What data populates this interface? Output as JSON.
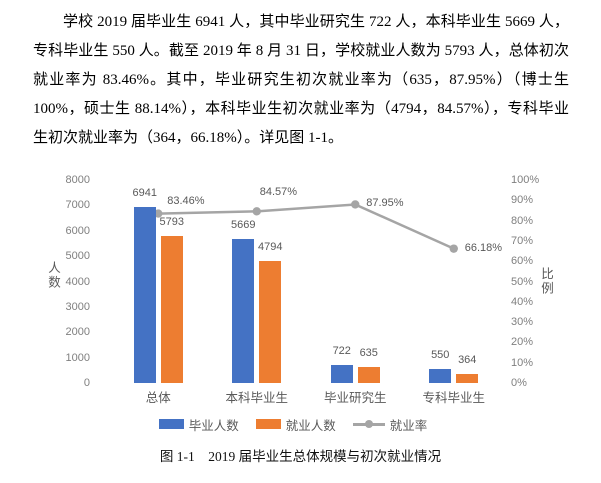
{
  "paragraph": {
    "text": "学校 2019 届毕业生 6941 人，其中毕业研究生 722 人，本科毕业生 5669 人，专科毕业生 550 人。截至 2019 年 8 月 31 日，学校就业人数为 5793 人，总体初次就业率为 83.46%。其中，毕业研究生初次就业率为（635，87.95%）（博士生 100%，硕士生 88.14%），本科毕业生初次就业率为（4794，84.57%），专科毕业生初次就业率为（364，66.18%）。详见图 1-1。"
  },
  "chart_data": {
    "type": "bar+line",
    "title": "",
    "categories": [
      "总体",
      "本科毕业生",
      "毕业研究生",
      "专科毕业生"
    ],
    "series": [
      {
        "name": "毕业人数",
        "type": "bar",
        "axis": "left",
        "color": "#4472C4",
        "values": [
          6941,
          5669,
          722,
          550
        ],
        "labels": [
          "6941",
          "5669",
          "722",
          "550"
        ]
      },
      {
        "name": "就业人数",
        "type": "bar",
        "axis": "left",
        "color": "#ED7D31",
        "values": [
          5793,
          4794,
          635,
          364
        ],
        "labels": [
          "5793",
          "4794",
          "635",
          "364"
        ]
      },
      {
        "name": "就业率",
        "type": "line",
        "axis": "right",
        "color": "#A5A5A5",
        "values": [
          83.46,
          84.57,
          87.95,
          66.18
        ],
        "labels": [
          "83.46%",
          "84.57%",
          "87.95%",
          "66.18%"
        ]
      }
    ],
    "left_axis": {
      "title": "人数",
      "min": 0,
      "max": 8000,
      "step": 1000,
      "ticks": [
        "8000",
        "7000",
        "6000",
        "5000",
        "4000",
        "3000",
        "2000",
        "1000",
        "0"
      ]
    },
    "right_axis": {
      "title": "比例",
      "min": 0,
      "max": 100,
      "step": 10,
      "ticks": [
        "100%",
        "90%",
        "80%",
        "70%",
        "60%",
        "50%",
        "40%",
        "30%",
        "20%",
        "10%",
        "0%"
      ]
    },
    "legend": [
      "毕业人数",
      "就业人数",
      "就业率"
    ],
    "legend_position": "bottom",
    "grid": false
  },
  "caption": {
    "text": "图 1-1　2019 届毕业生总体规模与初次就业情况"
  }
}
